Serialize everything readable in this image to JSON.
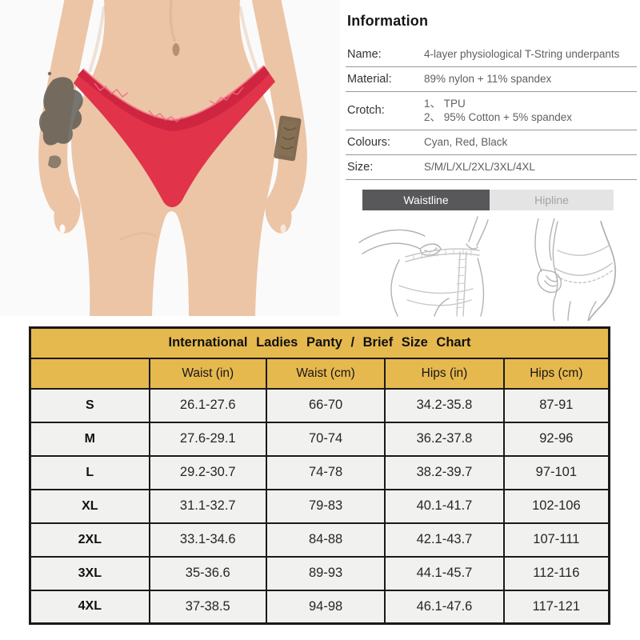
{
  "info": {
    "heading": "Information",
    "rows": [
      {
        "label": "Name:",
        "value": "4-layer physiological T-String underpants"
      },
      {
        "label": "Material:",
        "value": "89% nylon + 11% spandex"
      },
      {
        "label": "Crotch:",
        "lines": [
          "1、 TPU",
          "2、 95% Cotton + 5% spandex"
        ]
      },
      {
        "label": "Colours:",
        "value": "Cyan, Red, Black"
      },
      {
        "label": "Size:",
        "value": "S/M/L/XL/2XL/3XL/4XL"
      }
    ]
  },
  "tabs": {
    "items": [
      {
        "label": "Waistline",
        "active": true
      },
      {
        "label": "Hipline",
        "active": false
      }
    ]
  },
  "sketches": {
    "left": "waist-measurement-sketch",
    "right": "hip-measurement-sketch"
  },
  "size_chart": {
    "type": "table",
    "title": "International Ladies Panty / Brief Size Chart",
    "columns": [
      "",
      "Waist (in)",
      "Waist (cm)",
      "Hips (in)",
      "Hips (cm)"
    ],
    "rows": [
      [
        "S",
        "26.1-27.6",
        "66-70",
        "34.2-35.8",
        "87-91"
      ],
      [
        "M",
        "27.6-29.1",
        "70-74",
        "36.2-37.8",
        "92-96"
      ],
      [
        "L",
        "29.2-30.7",
        "74-78",
        "38.2-39.7",
        "97-101"
      ],
      [
        "XL",
        "31.1-32.7",
        "79-83",
        "40.1-41.7",
        "102-106"
      ],
      [
        "2XL",
        "33.1-34.6",
        "84-88",
        "42.1-43.7",
        "107-111"
      ],
      [
        "3XL",
        "35-36.6",
        "89-93",
        "44.1-45.7",
        "112-116"
      ],
      [
        "4XL",
        "37-38.5",
        "94-98",
        "46.1-47.6",
        "117-121"
      ]
    ]
  },
  "colors": {
    "table_header_bg": "#e6b94f",
    "table_row_bg": "#f1f1ef",
    "table_border": "#1a1a1a",
    "tab_active_bg": "#58585a",
    "tab_active_text": "#ffffff",
    "tab_inactive_bg": "#e4e4e4",
    "tab_inactive_text": "#a3a3a3",
    "product_red": "#e1334a"
  }
}
